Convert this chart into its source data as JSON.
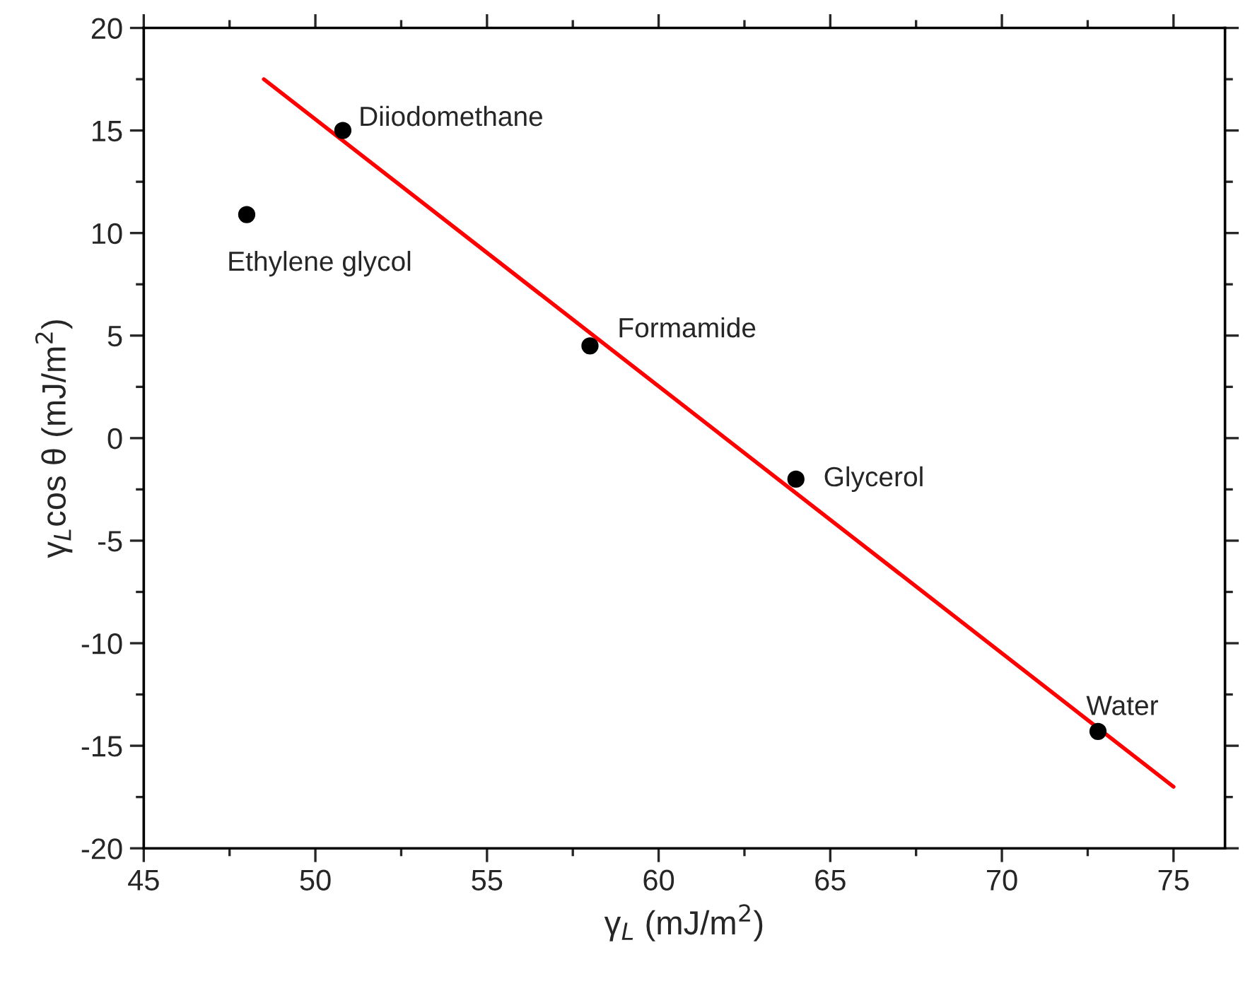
{
  "chart_data": {
    "type": "scatter",
    "xlabel": "γ$_{L}$ (mJ/m$^{2}$)",
    "ylabel": "γ$_{L}$cos θ (mJ/m$^{2}$)",
    "xlim": [
      45,
      76.5
    ],
    "ylim": [
      -20,
      20
    ],
    "xticks": [
      45,
      50,
      55,
      60,
      65,
      70,
      75
    ],
    "yticks": [
      -20,
      -15,
      -10,
      -5,
      0,
      5,
      10,
      15,
      20
    ],
    "grid": false,
    "legend": false,
    "marker": "circle",
    "series": [
      {
        "color": "#000000",
        "x": [
          48,
          50.8,
          58,
          64,
          72.8
        ],
        "values": [
          10.9,
          15,
          4.5,
          -2,
          -14.3
        ]
      },
      {
        "type": "line",
        "color": "#ff0000",
        "line_style": "solid",
        "marker": "none",
        "x": [
          48.5,
          75
        ],
        "values": [
          17.5,
          -17
        ]
      }
    ],
    "annotations": [
      {
        "text": "Ethylene glycol",
        "x": 48,
        "y": 10.9
      },
      {
        "text": "Diiodomethane",
        "x": 50.8,
        "y": 15
      },
      {
        "text": "Formamide",
        "x": 58,
        "y": 4.5
      },
      {
        "text": "Glycerol",
        "x": 64,
        "y": -2
      },
      {
        "text": "Water",
        "x": 72.8,
        "y": -14.3
      }
    ]
  }
}
